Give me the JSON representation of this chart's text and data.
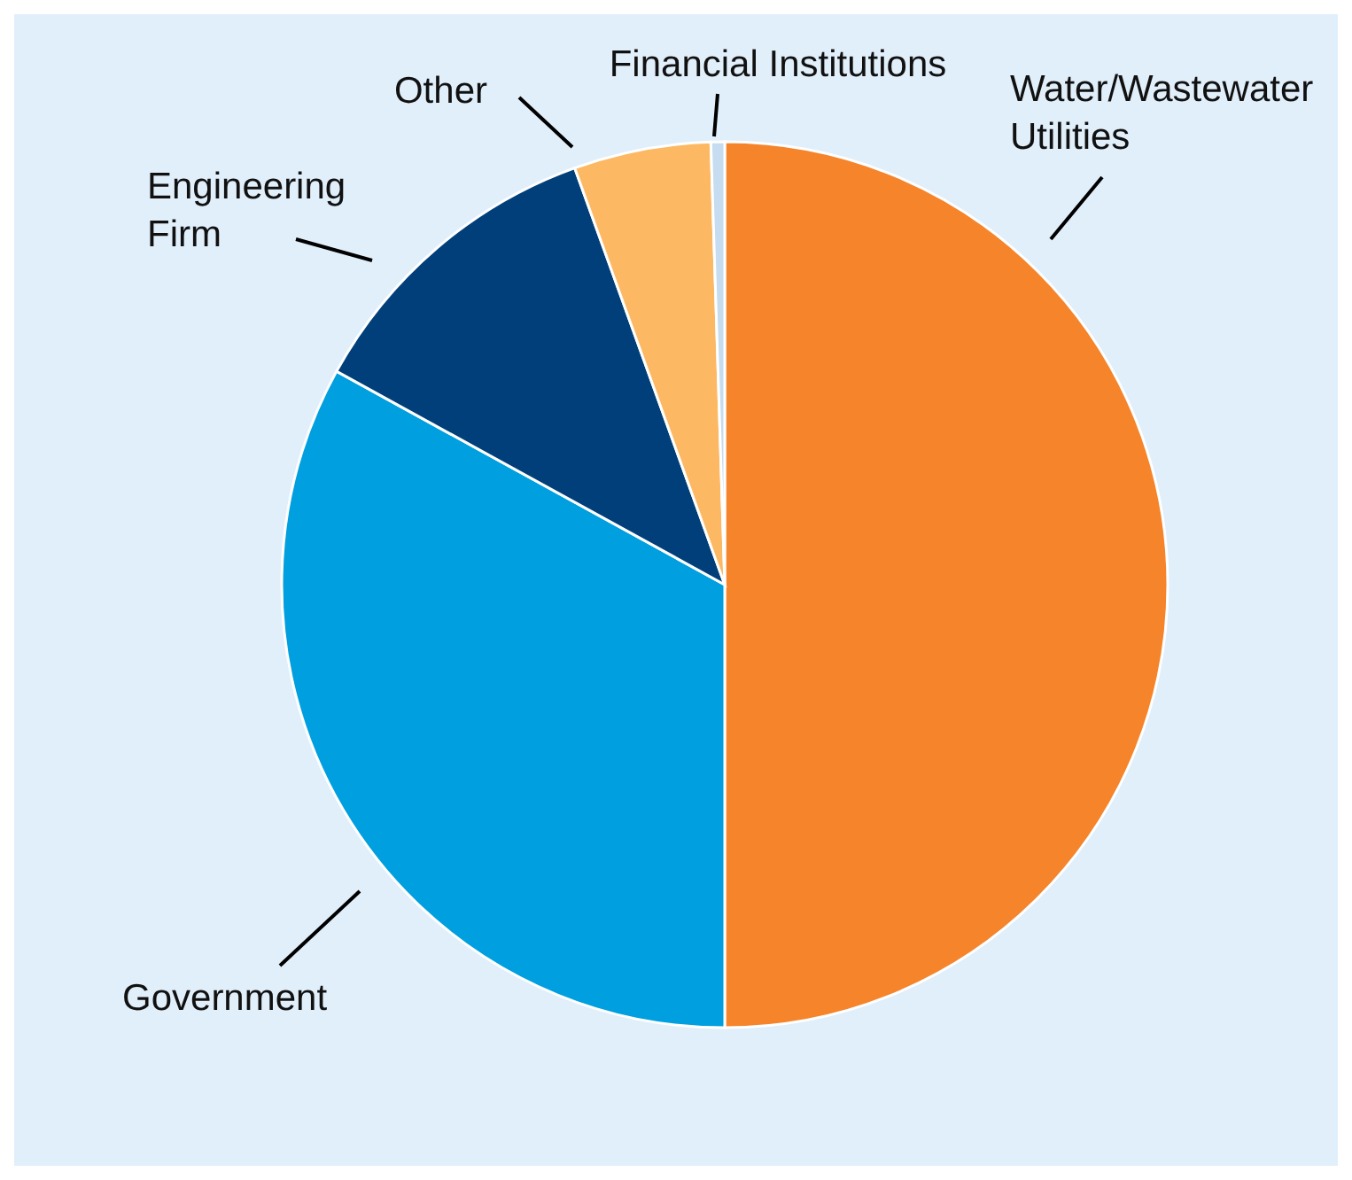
{
  "chart_data": {
    "type": "pie",
    "categories": [
      "Water/Wastewater Utilities",
      "Government",
      "Engineering Firm",
      "Other",
      "Financial Institutions"
    ],
    "values": [
      50,
      33,
      11.5,
      5,
      0.5
    ],
    "colors": [
      "#f5842a",
      "#009fdf",
      "#003f7a",
      "#fdb863",
      "#c6dcf0"
    ]
  }
}
